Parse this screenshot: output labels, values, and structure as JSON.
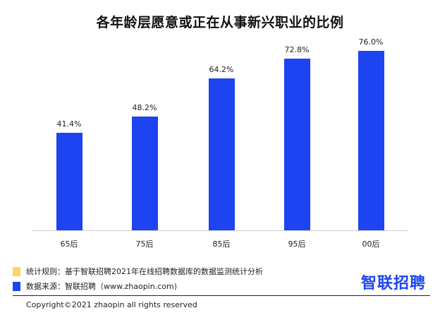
{
  "title": "各年龄层愿意或正在从事新兴职业的比例",
  "chart_data": {
    "type": "bar",
    "title": "各年龄层愿意或正在从事新兴职业的比例",
    "categories": [
      "65后",
      "75后",
      "85后",
      "95后",
      "00后"
    ],
    "values": [
      41.4,
      48.2,
      64.2,
      72.8,
      76.0
    ],
    "value_labels": [
      "41.4%",
      "48.2%",
      "64.2%",
      "72.8%",
      "76.0%"
    ],
    "xlabel": "",
    "ylabel": "",
    "ylim": [
      0,
      80
    ],
    "grid": false,
    "bar_color": "#1d44f0"
  },
  "legend": {
    "rule": {
      "label": "统计规则：基于智联招聘2021年在线招聘数据库的数据监测统计分析",
      "color": "#fdd663"
    },
    "source": {
      "label": "数据来源：智联招聘（www.zhaopin.com)",
      "color": "#1d44f0"
    }
  },
  "logo": {
    "text": "智联招聘",
    "color": "#1d44f0"
  },
  "footer": {
    "copyright": "Copyright©2021 zhaopin  all rights reserved"
  }
}
